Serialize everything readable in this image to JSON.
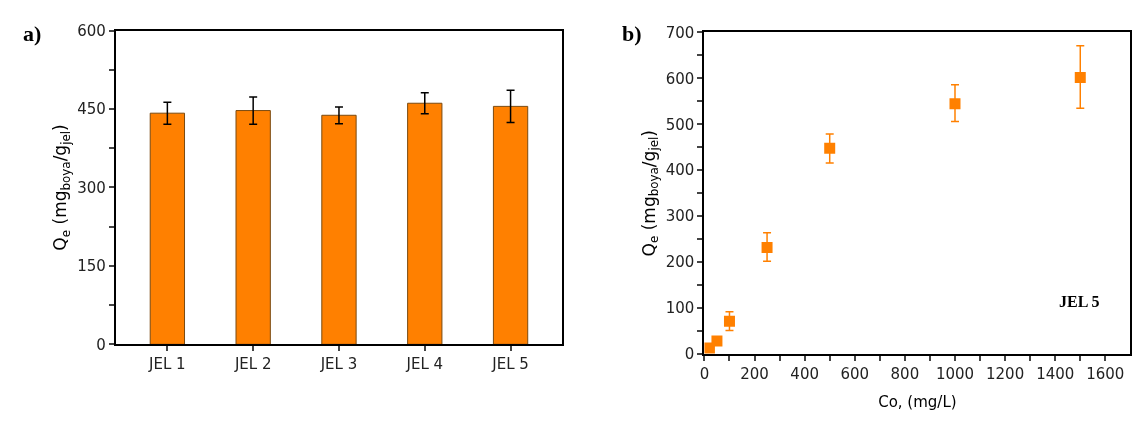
{
  "chart_data": [
    {
      "type": "bar",
      "title": "a)",
      "ylabel": "Q$_{e}$ (mg$_{boya}$/g$_{jel}$)",
      "categories": [
        "JEL 1",
        "JEL 2",
        "JEL 3",
        "JEL 4",
        "JEL 5"
      ],
      "values": [
        442,
        447,
        438,
        461,
        455
      ],
      "errors": [
        21,
        26,
        16,
        20,
        31
      ],
      "color": "#ff8000",
      "ylim": [
        0,
        600
      ],
      "yticks": [
        0,
        {
          "value": 75,
          "label": null
        },
        150,
        {
          "value": 225,
          "label": null
        },
        300,
        {
          "value": 375,
          "label": null
        },
        450,
        {
          "value": 525,
          "label": null
        },
        600
      ]
    },
    {
      "type": "scatter",
      "title": "b)",
      "xlabel": "Co, (mg/L)",
      "ylabel": "Q$_{e}$ (mg$_{boya}$/g$_{jel}$)",
      "annotations": [
        "JEL 5"
      ],
      "x": [
        20,
        50,
        100,
        250,
        500,
        1000,
        1500
      ],
      "values": [
        13,
        28,
        71,
        232,
        448,
        545,
        602
      ],
      "errors": [
        null,
        null,
        [
          51,
          92
        ],
        [
          202,
          264
        ],
        [
          416,
          479
        ],
        [
          506,
          586
        ],
        [
          535,
          671
        ]
      ],
      "color": "#ff8000",
      "marker": "square",
      "xlim": [
        0,
        1700
      ],
      "xticks": [
        0,
        {
          "value": 100,
          "label": null
        },
        200,
        {
          "value": 300,
          "label": null
        },
        400,
        {
          "value": 500,
          "label": null
        },
        600,
        {
          "value": 700,
          "label": null
        },
        800,
        {
          "value": 900,
          "label": null
        },
        1000,
        {
          "value": 1100,
          "label": null
        },
        1200,
        {
          "value": 1300,
          "label": null
        },
        1400,
        {
          "value": 1500,
          "label": null
        },
        1600
      ],
      "ylim": [
        0,
        700
      ],
      "yticks": [
        0,
        {
          "value": 50,
          "label": null
        },
        100,
        {
          "value": 150,
          "label": null
        },
        200,
        {
          "value": 250,
          "label": null
        },
        300,
        {
          "value": 350,
          "label": null
        },
        400,
        {
          "value": 450,
          "label": null
        },
        500,
        {
          "value": 550,
          "label": null
        },
        600,
        {
          "value": 650,
          "label": null
        },
        700
      ]
    }
  ]
}
